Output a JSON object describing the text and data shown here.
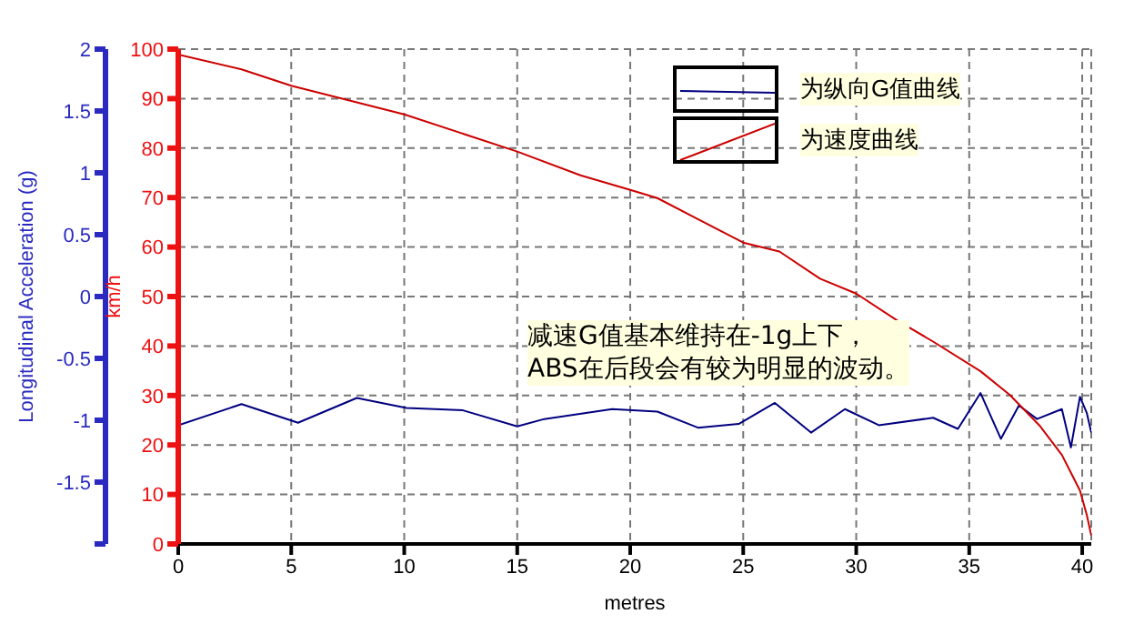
{
  "chart_data": {
    "type": "line",
    "xlabel": "metres",
    "ylabel": "Longitudinal Acceleration (g)",
    "y2label": "km/h",
    "xlim": [
      0,
      40.4
    ],
    "xticks": [
      0,
      5,
      10,
      15,
      20,
      25,
      30,
      35,
      40
    ],
    "ylim": [
      -2,
      2
    ],
    "yticks": [
      {
        "value": -2,
        "label": null
      },
      -1.5,
      -1,
      -0.5,
      0,
      0.5,
      1,
      1.5,
      2
    ],
    "y2lim": [
      0,
      100
    ],
    "y2ticks": [
      0,
      10,
      20,
      30,
      40,
      50,
      60,
      70,
      80,
      90,
      100
    ],
    "grid": true,
    "legend": "top right",
    "line_style": "solid",
    "marker": "none",
    "annotations": [
      "减速G值基本维持在-1g上下，\nABS在后段会有较为明显的波动。"
    ],
    "series": [
      {
        "name": "为纵向G值曲线",
        "color": "#000080",
        "x": [
          0,
          2.8,
          5.3,
          7.9,
          10.1,
          12.6,
          15,
          16.2,
          19.2,
          21.2,
          23,
          24.8,
          26.4,
          28,
          29.5,
          31,
          33.4,
          34.5,
          35.5,
          36.4,
          37.2,
          38,
          39.1,
          39.5,
          39.9,
          40.2,
          40.4
        ],
        "values": [
          -1.04,
          -0.87,
          -1.02,
          -0.82,
          -0.9,
          -0.92,
          -1.05,
          -0.99,
          -0.91,
          -0.93,
          -1.06,
          -1.03,
          -0.86,
          -1.1,
          -0.91,
          -1.04,
          -0.98,
          -1.07,
          -0.78,
          -1.15,
          -0.88,
          -0.99,
          -0.91,
          -1.22,
          -0.81,
          -0.94,
          -1.1
        ]
      },
      {
        "name": "为速度曲线",
        "color": "#cc0000",
        "axis": "y2",
        "x": [
          0,
          2.8,
          5,
          10,
          15,
          17.8,
          20.1,
          21.2,
          25,
          26.6,
          28.4,
          30,
          31.8,
          33.4,
          35.5,
          36.8,
          38.1,
          39.1,
          39.9,
          40.2,
          40.4
        ],
        "values": [
          98.9,
          95.9,
          92.6,
          86.8,
          79.3,
          74.5,
          71.4,
          69.9,
          60.9,
          59.1,
          53.6,
          50.6,
          45.2,
          40.9,
          34.9,
          30.1,
          24,
          18,
          10.8,
          5.9,
          1.7
        ]
      }
    ]
  }
}
